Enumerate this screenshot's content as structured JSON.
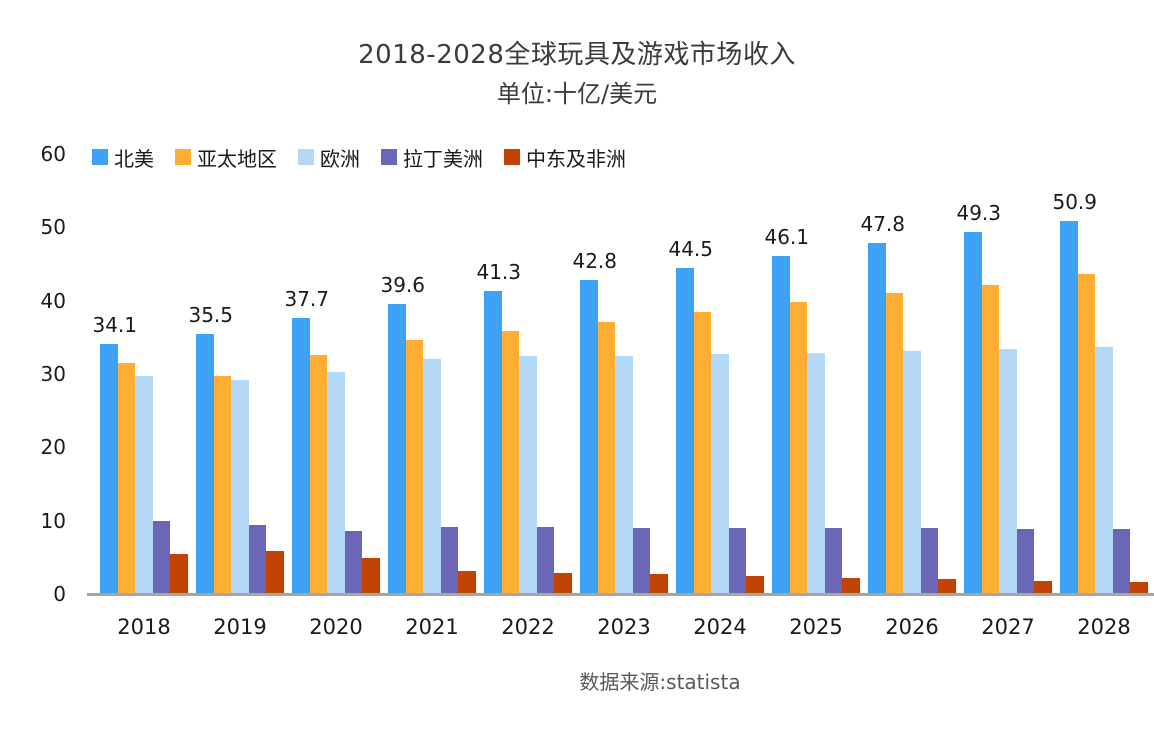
{
  "title": {
    "line1": "2018-2028全球玩具及游戏市场收入",
    "line2": "单位:十亿/美元"
  },
  "footer": {
    "source": "数据来源:statista"
  },
  "chart_data": {
    "type": "bar",
    "title": "2018-2028全球玩具及游戏市场收入",
    "subtitle": "单位:十亿/美元",
    "categories": [
      "2018",
      "2019",
      "2020",
      "2021",
      "2022",
      "2023",
      "2024",
      "2025",
      "2026",
      "2027",
      "2028"
    ],
    "series": [
      {
        "name": "北美",
        "color": "#3da1f5",
        "values": [
          34.1,
          35.5,
          37.7,
          39.6,
          41.3,
          42.8,
          44.5,
          46.1,
          47.8,
          49.3,
          50.9
        ],
        "data_labels": true
      },
      {
        "name": "亚太地区",
        "color": "#ffae33",
        "values": [
          31.5,
          29.7,
          32.6,
          34.7,
          35.9,
          37.1,
          38.4,
          39.8,
          41.0,
          42.2,
          43.6
        ],
        "data_labels": false
      },
      {
        "name": "欧洲",
        "color": "#b3d9f7",
        "values": [
          29.7,
          29.2,
          30.3,
          32.1,
          32.4,
          32.4,
          32.7,
          32.8,
          33.2,
          33.4,
          33.7
        ],
        "data_labels": false
      },
      {
        "name": "拉丁美洲",
        "color": "#6b67b6",
        "values": [
          9.9,
          9.4,
          8.6,
          9.1,
          9.1,
          9.0,
          9.0,
          9.0,
          9.0,
          8.9,
          8.9
        ],
        "data_labels": false
      },
      {
        "name": "中东及非洲",
        "color": "#c34205",
        "values": [
          5.4,
          5.9,
          4.9,
          3.1,
          2.9,
          2.7,
          2.4,
          2.2,
          2.0,
          1.8,
          1.6
        ],
        "data_labels": false
      }
    ],
    "ylim": [
      0,
      60
    ],
    "yticks": [
      0,
      10,
      20,
      30,
      40,
      50,
      60
    ],
    "grid": false,
    "legend_position": "top-left",
    "axis_line_color": "#a6a6a6",
    "source": "数据来源:statista"
  }
}
